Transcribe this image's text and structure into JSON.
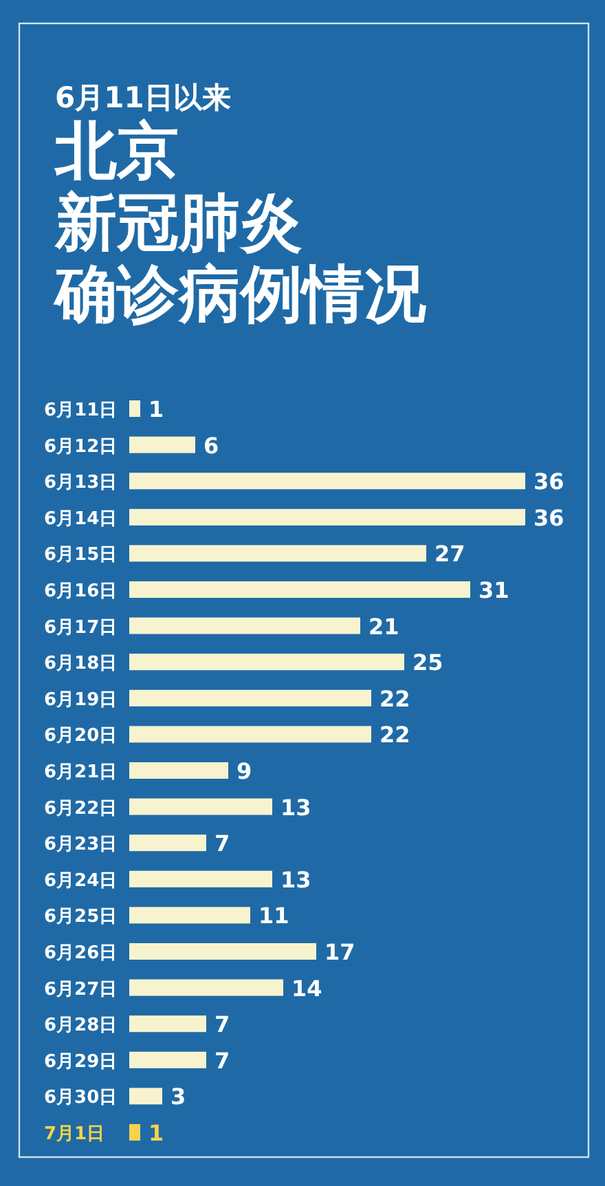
{
  "chart_data": {
    "type": "bar",
    "orientation": "horizontal",
    "subtitle": "6月11日以来",
    "title": "北京新冠肺炎确诊病例情况",
    "categories": [
      "6月11日",
      "6月12日",
      "6月13日",
      "6月14日",
      "6月15日",
      "6月16日",
      "6月17日",
      "6月18日",
      "6月19日",
      "6月20日",
      "6月21日",
      "6月22日",
      "6月23日",
      "6月24日",
      "6月25日",
      "6月26日",
      "6月27日",
      "6月28日",
      "6月29日",
      "6月30日",
      "7月1日"
    ],
    "values": [
      1,
      6,
      36,
      36,
      27,
      31,
      21,
      25,
      22,
      22,
      9,
      13,
      7,
      13,
      11,
      17,
      14,
      7,
      7,
      3,
      1
    ],
    "colors": [
      "#f7f3cf",
      "#f7f3cf",
      "#f7f3cf",
      "#f7f3cf",
      "#f7f3cf",
      "#f7f3cf",
      "#f7f3cf",
      "#f7f3cf",
      "#f7f3cf",
      "#f7f3cf",
      "#f7f3cf",
      "#f7f3cf",
      "#f7f3cf",
      "#f7f3cf",
      "#f7f3cf",
      "#f7f3cf",
      "#f7f3cf",
      "#f7f3cf",
      "#f7f3cf",
      "#f7f3cf",
      "#f5d34a"
    ],
    "data_labels": true
  }
}
